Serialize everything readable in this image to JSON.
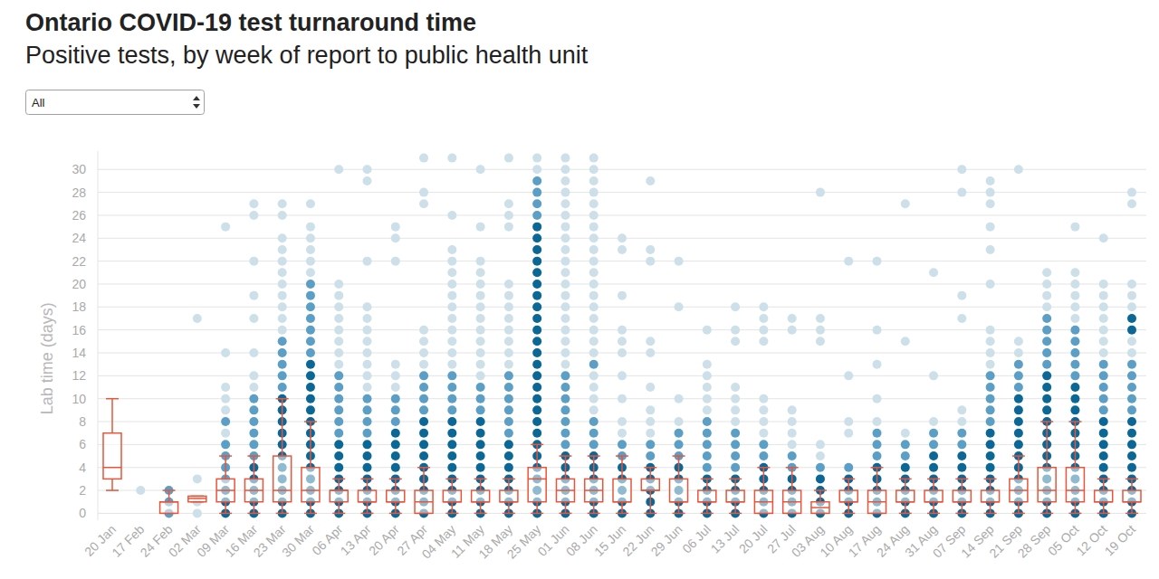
{
  "chart_data": {
    "type": "box",
    "title": "Ontario COVID-19 test turnaround time",
    "subtitle": "Positive tests, by week of report to public health unit",
    "dropdown": "All",
    "y_label": "Lab time (days)",
    "grid": true,
    "ylim": [
      -0.6,
      31.6
    ],
    "yticks": [
      0,
      2,
      4,
      6,
      8,
      10,
      12,
      14,
      16,
      18,
      20,
      22,
      24,
      26,
      28,
      30
    ],
    "categories": [
      "20 Jan",
      "17 Feb",
      "24 Feb",
      "02 Mar",
      "09 Mar",
      "16 Mar",
      "23 Mar",
      "30 Mar",
      "06 Apr",
      "13 Apr",
      "20 Apr",
      "27 Apr",
      "04 May",
      "11 May",
      "18 May",
      "25 May",
      "01 Jun",
      "08 Jun",
      "15 Jun",
      "22 Jun",
      "29 Jun",
      "06 Jul",
      "13 Jul",
      "20 Jul",
      "27 Jul",
      "03 Aug",
      "10 Aug",
      "17 Aug",
      "24 Aug",
      "31 Aug",
      "07 Sep",
      "14 Sep",
      "21 Sep",
      "28 Sep",
      "05 Oct",
      "12 Oct",
      "19 Oct"
    ],
    "color": "#e8553a",
    "min": [
      2,
      null,
      0,
      1,
      0,
      0,
      0,
      0,
      0,
      0,
      0,
      0,
      0,
      0,
      0,
      0,
      0,
      0,
      0,
      0,
      0,
      0,
      0,
      0,
      0,
      0,
      0,
      0,
      0,
      0,
      0,
      0,
      0,
      0,
      0,
      0,
      0
    ],
    "q1": [
      3,
      null,
      0,
      1,
      1,
      1,
      1,
      1,
      1,
      1,
      1,
      0,
      1,
      1,
      1,
      1,
      1,
      1,
      1,
      2,
      1,
      1,
      1,
      0,
      0,
      0,
      1,
      0,
      1,
      1,
      1,
      1,
      1,
      1,
      1,
      1,
      1
    ],
    "median": [
      4,
      null,
      1,
      1.3,
      2,
      2,
      2,
      2,
      2,
      1,
      1,
      1,
      1,
      1,
      1,
      3,
      2,
      2,
      1,
      2,
      1,
      1,
      1,
      1,
      1,
      0.5,
      1,
      1,
      1,
      1,
      1,
      1,
      2,
      2,
      2,
      1,
      1
    ],
    "q3": [
      7,
      null,
      1,
      1.5,
      3,
      3,
      5,
      4,
      2,
      2,
      2,
      2,
      2,
      2,
      2,
      4,
      3,
      3,
      3,
      3,
      3,
      2,
      2,
      2,
      2,
      1,
      2,
      2,
      2,
      2,
      2,
      2,
      3,
      4,
      4,
      2,
      2
    ],
    "max": [
      10,
      null,
      2,
      1.5,
      5,
      5,
      10,
      8,
      3,
      3,
      3,
      4,
      3,
      3,
      3,
      6,
      5,
      5,
      5,
      4,
      5,
      3,
      3,
      4,
      4,
      2,
      3,
      4,
      3,
      3,
      3,
      3,
      5,
      8,
      8,
      3,
      3
    ],
    "series": [
      {
        "color": "#cde0ea",
        "values": [
          [],
          [
            2
          ],
          [],
          [
            0,
            1,
            3,
            17
          ],
          [
            7,
            9,
            10,
            11,
            14,
            25
          ],
          [
            11,
            12,
            14,
            17,
            19,
            22,
            26,
            27
          ],
          [
            16,
            17,
            18,
            19,
            20,
            21,
            22,
            23,
            24,
            26,
            27
          ],
          [
            21,
            22,
            23,
            24,
            25,
            27
          ],
          [
            13,
            14,
            15,
            16,
            17,
            18,
            19,
            20,
            30
          ],
          [
            11,
            12,
            13,
            14,
            15,
            16,
            17,
            18,
            22,
            29,
            30
          ],
          [
            11,
            12,
            13,
            22,
            24,
            25
          ],
          [
            13,
            14,
            15,
            16,
            27,
            28,
            31
          ],
          [
            13,
            14,
            15,
            16,
            17,
            18,
            19,
            20,
            21,
            22,
            23,
            26,
            31
          ],
          [
            12,
            13,
            14,
            15,
            16,
            17,
            18,
            19,
            20,
            21,
            22,
            25,
            30
          ],
          [
            13,
            14,
            15,
            16,
            17,
            18,
            19,
            20,
            25,
            26,
            27,
            31
          ],
          [
            30,
            31
          ],
          [
            13,
            14,
            15,
            16,
            17,
            18,
            19,
            20,
            21,
            22,
            23,
            24,
            25,
            26,
            27,
            28,
            29,
            30,
            31
          ],
          [
            9,
            10,
            11,
            12,
            14,
            15,
            16,
            17,
            18,
            19,
            20,
            21,
            22,
            23,
            24,
            25,
            26,
            27,
            28,
            29,
            30,
            31
          ],
          [
            7,
            8,
            10,
            12,
            14,
            15,
            16,
            19,
            23,
            24
          ],
          [
            7,
            8,
            9,
            11,
            14,
            15,
            22,
            23,
            29
          ],
          [
            8,
            10,
            18,
            22
          ],
          [
            9,
            10,
            11,
            12,
            13,
            16
          ],
          [
            8,
            9,
            10,
            11,
            15,
            16,
            18
          ],
          [
            7,
            8,
            9,
            10,
            15,
            16,
            17,
            18
          ],
          [
            6,
            7,
            8,
            9,
            16,
            17
          ],
          [
            5,
            6,
            15,
            16,
            17,
            28
          ],
          [
            7,
            8,
            12,
            22
          ],
          [
            8,
            10,
            13,
            16,
            22
          ],
          [
            7,
            15,
            27
          ],
          [
            8,
            12,
            21
          ],
          [
            8,
            9,
            17,
            19,
            28,
            30
          ],
          [
            13,
            14,
            15,
            16,
            20,
            23,
            25,
            27,
            28,
            29
          ],
          [
            14,
            15,
            30
          ],
          [
            18,
            19,
            20,
            21
          ],
          [
            17,
            18,
            19,
            20,
            21,
            25
          ],
          [
            14,
            15,
            16,
            17,
            18,
            19,
            20,
            24
          ],
          [
            14,
            15,
            18,
            19,
            20,
            27,
            28
          ]
        ]
      },
      {
        "color": "#5b9ec6",
        "values": [
          [],
          [],
          [
            0,
            1,
            2
          ],
          [],
          [
            3,
            4,
            5,
            6,
            8
          ],
          [
            5,
            6,
            7,
            8,
            9,
            10
          ],
          [
            11,
            12,
            13,
            14,
            15
          ],
          [
            14,
            15,
            16,
            17,
            18,
            19,
            20
          ],
          [
            7,
            8,
            9,
            10,
            11,
            12
          ],
          [
            7,
            8,
            9,
            10
          ],
          [
            8,
            9,
            10
          ],
          [
            9,
            10,
            11,
            12
          ],
          [
            9,
            10,
            11,
            12
          ],
          [
            9,
            10,
            11
          ],
          [
            7,
            8,
            9,
            10,
            11,
            12
          ],
          [
            26,
            27,
            28,
            29
          ],
          [
            6,
            7,
            8,
            9,
            10,
            11,
            12
          ],
          [
            6,
            7,
            8,
            13
          ],
          [
            5,
            6
          ],
          [
            5,
            6
          ],
          [
            5,
            6,
            7
          ],
          [
            4,
            5,
            6,
            7,
            8
          ],
          [
            4,
            5,
            6,
            7
          ],
          [
            5,
            6
          ],
          [
            4,
            5
          ],
          [
            4
          ],
          [
            4
          ],
          [
            5,
            6,
            7
          ],
          [
            5,
            6
          ],
          [
            6,
            7
          ],
          [
            6,
            7
          ],
          [
            8,
            9,
            10,
            11,
            12
          ],
          [
            11,
            12,
            13
          ],
          [
            13,
            14,
            15,
            16,
            17
          ],
          [
            12,
            13,
            14,
            15,
            16
          ],
          [
            9,
            10,
            11,
            12,
            13
          ],
          [
            9,
            10,
            11,
            12,
            13
          ]
        ]
      },
      {
        "color": "#0b6796",
        "values": [
          [],
          [],
          [],
          [],
          [
            0,
            1,
            2
          ],
          [
            0,
            1,
            2,
            3,
            4
          ],
          [
            0,
            1,
            2,
            3,
            4,
            5,
            6,
            7,
            8,
            9,
            10
          ],
          [
            0,
            1,
            2,
            3,
            4,
            5,
            6,
            7,
            8,
            9,
            10,
            11,
            12,
            13
          ],
          [
            0,
            1,
            2,
            3,
            4,
            5,
            6
          ],
          [
            0,
            1,
            2,
            3,
            4,
            5,
            6
          ],
          [
            0,
            1,
            2,
            3,
            4,
            5,
            6,
            7
          ],
          [
            0,
            1,
            2,
            3,
            4,
            5,
            6,
            7,
            8
          ],
          [
            0,
            1,
            2,
            3,
            4,
            5,
            6,
            7,
            8
          ],
          [
            0,
            1,
            2,
            3,
            4,
            5,
            6,
            7,
            8
          ],
          [
            0,
            1,
            2,
            3,
            4,
            5,
            6
          ],
          [
            0,
            1,
            2,
            3,
            4,
            5,
            6,
            7,
            8,
            9,
            10,
            11,
            12,
            13,
            14,
            15,
            16,
            17,
            18,
            19,
            20,
            21,
            22,
            23,
            24,
            25
          ],
          [
            0,
            1,
            2,
            3,
            4,
            5
          ],
          [
            0,
            1,
            2,
            3,
            4,
            5
          ],
          [
            0,
            1,
            2,
            3,
            4
          ],
          [
            0,
            1,
            2,
            3,
            4
          ],
          [
            0,
            1,
            2,
            3,
            4
          ],
          [
            0,
            1,
            2,
            3
          ],
          [
            0,
            1,
            2,
            3
          ],
          [
            0,
            1,
            2,
            3,
            4
          ],
          [
            0,
            1,
            2,
            3
          ],
          [
            0,
            1,
            2,
            3
          ],
          [
            0,
            1,
            2,
            3
          ],
          [
            0,
            1,
            2,
            3,
            4
          ],
          [
            0,
            1,
            2,
            3,
            4
          ],
          [
            0,
            1,
            2,
            3,
            4,
            5
          ],
          [
            0,
            1,
            2,
            3,
            4,
            5
          ],
          [
            0,
            1,
            2,
            3,
            4,
            5,
            6,
            7
          ],
          [
            0,
            1,
            2,
            3,
            4,
            5,
            6,
            7,
            8,
            9,
            10
          ],
          [
            0,
            1,
            2,
            3,
            4,
            5,
            6,
            7,
            8,
            9,
            10,
            11,
            12
          ],
          [
            0,
            1,
            2,
            3,
            4,
            5,
            6,
            7,
            8,
            9,
            10,
            11
          ],
          [
            0,
            1,
            2,
            3,
            4,
            5,
            6,
            7,
            8
          ],
          [
            0,
            1,
            2,
            3,
            4,
            5,
            6,
            7,
            8,
            16,
            17
          ]
        ]
      }
    ]
  }
}
